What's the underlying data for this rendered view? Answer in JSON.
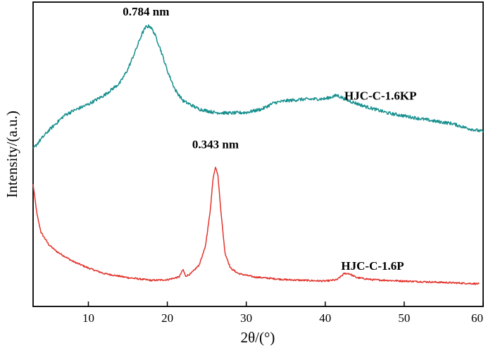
{
  "chart_data": {
    "type": "line",
    "title": "",
    "xlabel": "2θ/(°)",
    "ylabel": "Intensity/(a.u.)",
    "xlim": [
      3,
      60
    ],
    "xticks": [
      "10",
      "20",
      "30",
      "40",
      "50",
      "60"
    ],
    "y_ticks_shown": false,
    "legend": "none",
    "series": [
      {
        "name": "HJC-C-1.6P",
        "color": "#e2332c",
        "points": [
          [
            3,
            8.9
          ],
          [
            3.5,
            6.7
          ],
          [
            4,
            5.4
          ],
          [
            5,
            4.5
          ],
          [
            6,
            4.0
          ],
          [
            8,
            3.3
          ],
          [
            10,
            2.8
          ],
          [
            12,
            2.4
          ],
          [
            15,
            2.1
          ],
          [
            18,
            1.9
          ],
          [
            20,
            1.95
          ],
          [
            21.5,
            2.15
          ],
          [
            22,
            2.7
          ],
          [
            22.3,
            2.2
          ],
          [
            23,
            2.4
          ],
          [
            24,
            3.0
          ],
          [
            24.8,
            4.3
          ],
          [
            25.4,
            6.8
          ],
          [
            25.8,
            9.4
          ],
          [
            26.1,
            10.2
          ],
          [
            26.4,
            9.6
          ],
          [
            26.8,
            6.9
          ],
          [
            27.3,
            3.9
          ],
          [
            28,
            2.8
          ],
          [
            29,
            2.4
          ],
          [
            31,
            2.15
          ],
          [
            35,
            1.95
          ],
          [
            40,
            1.85
          ],
          [
            41.5,
            1.95
          ],
          [
            42.4,
            2.4
          ],
          [
            43,
            2.4
          ],
          [
            44,
            2.1
          ],
          [
            46,
            1.95
          ],
          [
            50,
            1.85
          ],
          [
            55,
            1.75
          ],
          [
            59.5,
            1.65
          ]
        ]
      },
      {
        "name": "HJC-C-1.6KP",
        "color": "#178f8e",
        "points": [
          [
            3,
            0.5
          ],
          [
            4,
            1.2
          ],
          [
            5,
            1.85
          ],
          [
            6,
            2.4
          ],
          [
            7,
            2.95
          ],
          [
            8,
            3.25
          ],
          [
            10,
            3.75
          ],
          [
            12,
            4.4
          ],
          [
            14,
            5.3
          ],
          [
            15,
            6.3
          ],
          [
            16,
            7.7
          ],
          [
            16.8,
            8.9
          ],
          [
            17.3,
            9.4
          ],
          [
            17.8,
            9.45
          ],
          [
            18.3,
            9.0
          ],
          [
            19,
            8.0
          ],
          [
            20,
            6.2
          ],
          [
            21,
            4.8
          ],
          [
            22,
            4.0
          ],
          [
            24,
            3.4
          ],
          [
            26,
            3.15
          ],
          [
            28,
            3.1
          ],
          [
            30,
            3.15
          ],
          [
            32,
            3.4
          ],
          [
            33.5,
            3.85
          ],
          [
            35,
            4.0
          ],
          [
            37,
            4.1
          ],
          [
            40,
            4.15
          ],
          [
            41.5,
            4.4
          ],
          [
            43,
            4.0
          ],
          [
            45,
            3.6
          ],
          [
            48,
            3.1
          ],
          [
            51,
            2.8
          ],
          [
            54,
            2.5
          ],
          [
            56,
            2.35
          ],
          [
            58,
            2.0
          ],
          [
            60,
            1.75
          ]
        ]
      }
    ],
    "annotations": [
      {
        "text": "0.343 nm",
        "x": 26.1,
        "series": 0
      },
      {
        "text": "HJC-C-1.6P",
        "x": 46,
        "series": 0
      },
      {
        "text": "0.784 nm",
        "x": 17.3,
        "series": 1
      },
      {
        "text": "HJC-C-1.6KP",
        "x": 47,
        "series": 1
      }
    ]
  }
}
